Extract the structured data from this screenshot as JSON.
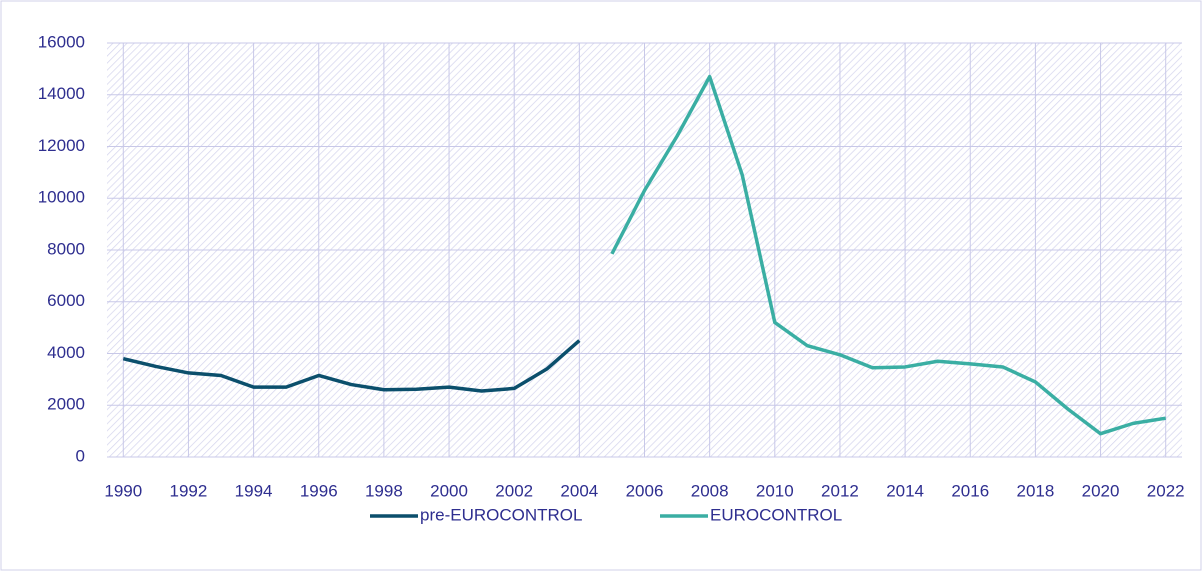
{
  "chart_data": {
    "type": "line",
    "x": [
      1990,
      1991,
      1992,
      1993,
      1994,
      1995,
      1996,
      1997,
      1998,
      1999,
      2000,
      2001,
      2002,
      2003,
      2004,
      2005,
      2006,
      2007,
      2008,
      2009,
      2010,
      2011,
      2012,
      2013,
      2014,
      2015,
      2016,
      2017,
      2018,
      2019,
      2020,
      2021,
      2022
    ],
    "series": [
      {
        "name": "pre-EUROCONTROL",
        "color": "#0b4f6c",
        "values": [
          3800,
          3500,
          3250,
          3150,
          2700,
          2700,
          3150,
          2800,
          2600,
          2620,
          2700,
          2550,
          2650,
          3400,
          4500,
          null,
          null,
          null,
          null,
          null,
          null,
          null,
          null,
          null,
          null,
          null,
          null,
          null,
          null,
          null,
          null,
          null,
          null
        ]
      },
      {
        "name": "EUROCONTROL",
        "color": "#3aaea3",
        "values": [
          null,
          null,
          null,
          null,
          null,
          null,
          null,
          null,
          null,
          null,
          null,
          null,
          null,
          null,
          null,
          7850,
          10300,
          12400,
          14700,
          10900,
          5200,
          4300,
          3950,
          3450,
          3480,
          3700,
          3600,
          3480,
          2900,
          1850,
          900,
          1300,
          1500
        ]
      }
    ],
    "xlim": [
      1989.5,
      2022.5
    ],
    "xticks": [
      1990,
      1992,
      1994,
      1996,
      1998,
      2000,
      2002,
      2004,
      2006,
      2008,
      2010,
      2012,
      2014,
      2016,
      2018,
      2020,
      2022
    ],
    "ylim": [
      0,
      16000
    ],
    "yticks": [
      0,
      2000,
      4000,
      6000,
      8000,
      10000,
      12000,
      14000,
      16000
    ],
    "grid": true,
    "legend": "bottom"
  }
}
